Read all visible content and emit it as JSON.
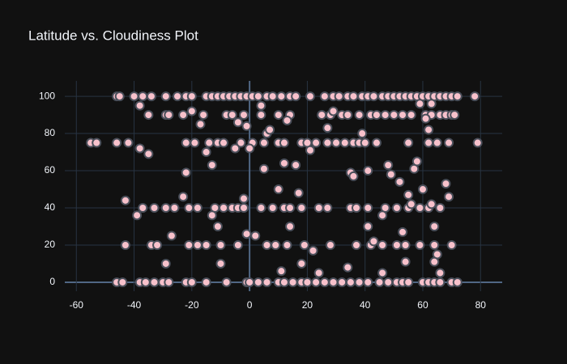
{
  "chart_data": {
    "type": "scatter",
    "title": "Latitude vs. Cloudiness Plot",
    "x": [
      -46,
      -45,
      -40,
      -37,
      -34,
      -29,
      -25,
      -22,
      -20,
      -15,
      -13,
      -11,
      -9,
      -7,
      -5,
      -3,
      -1,
      1,
      3,
      6,
      8,
      11,
      14,
      16,
      21,
      26,
      29,
      31,
      34,
      36,
      39,
      41,
      43,
      46,
      48,
      50,
      52,
      54,
      56,
      58,
      60,
      62,
      64,
      66,
      68,
      70,
      72,
      78,
      -35,
      -29,
      -28,
      -23,
      -16,
      -8,
      -6,
      -2,
      4,
      10,
      14,
      25,
      28,
      32,
      34,
      38,
      42,
      44,
      47,
      50,
      53,
      56,
      61,
      63,
      66,
      68,
      70,
      71,
      -55,
      -53,
      -46,
      -42,
      -22,
      -19,
      -14,
      -11,
      -9,
      -3,
      1,
      5,
      10,
      12,
      18,
      20,
      23,
      27,
      30,
      33,
      36,
      38,
      40,
      44,
      55,
      62,
      65,
      69,
      79,
      -37,
      -33,
      -29,
      -26,
      -21,
      -18,
      -12,
      -9,
      -6,
      -4,
      -2,
      4,
      8,
      12,
      14,
      18,
      24,
      27,
      35,
      37,
      41,
      47,
      51,
      55,
      59,
      62,
      66,
      -43,
      -34,
      -32,
      -21,
      -18,
      -15,
      -10,
      -4,
      6,
      9,
      13,
      19,
      28,
      37,
      42,
      46,
      51,
      54,
      59,
      64,
      70,
      -46,
      -44,
      -38,
      -36,
      -33,
      -30,
      -28,
      -22,
      -20,
      -15,
      -8,
      -1,
      0,
      3,
      6,
      10,
      12,
      15,
      18,
      20,
      23,
      26,
      29,
      32,
      35,
      38,
      41,
      45,
      48,
      51,
      53,
      55,
      60,
      62,
      64,
      66,
      70,
      72,
      -38,
      -38,
      -35,
      -43,
      -39,
      -27,
      -29,
      -23,
      -22,
      -20,
      -17,
      -15,
      -13,
      -13,
      -11,
      -10,
      -5,
      -4,
      -1,
      0,
      -2,
      -1,
      2,
      4,
      5,
      6,
      7,
      10,
      11,
      12,
      13,
      14,
      16,
      17,
      18,
      21,
      22,
      24,
      25,
      27,
      29,
      34,
      35,
      36,
      39,
      41,
      41,
      43,
      46,
      46,
      48,
      49,
      52,
      53,
      54,
      55,
      56,
      57,
      58,
      60,
      61,
      62,
      63,
      64,
      65,
      66,
      68,
      69,
      64,
      59,
      63
    ],
    "values": [
      100,
      100,
      100,
      100,
      100,
      100,
      100,
      100,
      100,
      100,
      100,
      100,
      100,
      100,
      100,
      100,
      100,
      100,
      100,
      100,
      100,
      100,
      100,
      100,
      100,
      100,
      100,
      100,
      100,
      100,
      100,
      100,
      100,
      100,
      100,
      100,
      100,
      100,
      100,
      100,
      100,
      100,
      100,
      100,
      100,
      100,
      100,
      100,
      90,
      90,
      90,
      90,
      90,
      90,
      90,
      90,
      90,
      90,
      90,
      90,
      90,
      90,
      90,
      90,
      90,
      90,
      90,
      90,
      90,
      90,
      90,
      90,
      90,
      90,
      90,
      90,
      75,
      75,
      75,
      75,
      75,
      75,
      75,
      75,
      75,
      75,
      75,
      75,
      75,
      75,
      75,
      75,
      75,
      75,
      75,
      75,
      75,
      75,
      75,
      75,
      75,
      75,
      75,
      75,
      75,
      40,
      40,
      40,
      40,
      40,
      40,
      40,
      40,
      40,
      40,
      40,
      40,
      40,
      40,
      40,
      40,
      40,
      40,
      40,
      40,
      40,
      40,
      40,
      40,
      40,
      40,
      40,
      20,
      20,
      20,
      20,
      20,
      20,
      20,
      20,
      20,
      20,
      20,
      20,
      20,
      20,
      20,
      20,
      20,
      20,
      20,
      20,
      20,
      0,
      0,
      0,
      0,
      0,
      0,
      0,
      0,
      0,
      0,
      0,
      0,
      0,
      0,
      0,
      0,
      0,
      0,
      0,
      0,
      0,
      0,
      0,
      0,
      0,
      0,
      0,
      0,
      0,
      0,
      0,
      0,
      0,
      0,
      0,
      0,
      0,
      0,
      95,
      72,
      69,
      44,
      36,
      25,
      10,
      46,
      59,
      92,
      85,
      70,
      63,
      36,
      30,
      10,
      72,
      86,
      84,
      72,
      45,
      26,
      25,
      95,
      61,
      80,
      82,
      50,
      6,
      64,
      87,
      30,
      63,
      48,
      10,
      71,
      17,
      5,
      90,
      83,
      92,
      8,
      59,
      57,
      80,
      60,
      30,
      22,
      5,
      36,
      63,
      58,
      54,
      27,
      11,
      47,
      42,
      61,
      65,
      50,
      88,
      82,
      42,
      30,
      15,
      5,
      53,
      46,
      11,
      96,
      96
    ],
    "color": "#f7c1cb",
    "edgecolor": "#4a4f5a",
    "xlim": [
      -64,
      87.5
    ],
    "ylim": [
      -4.8,
      108.3
    ],
    "xticks": [
      -60,
      -40,
      -20,
      0,
      20,
      40,
      60,
      80
    ],
    "yticks": [
      0,
      20,
      40,
      60,
      80,
      100
    ],
    "grid": true
  }
}
